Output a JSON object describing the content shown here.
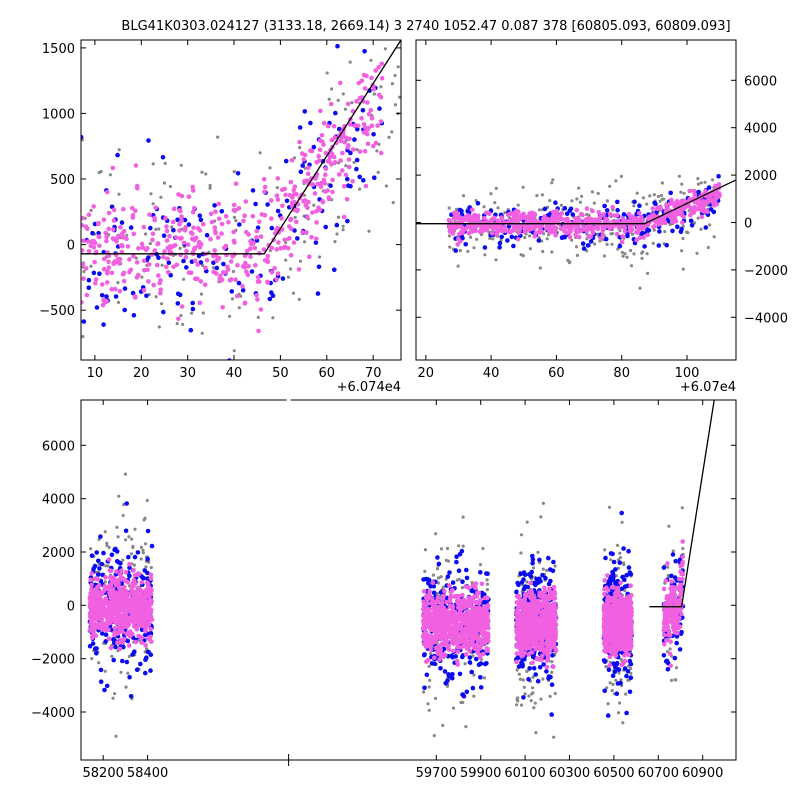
{
  "title": "BLG41K0303.024127 (3133.18, 2669.14)    3 2740 1052.47 0.087 378 [60805.093, 60809.093]",
  "colors": {
    "grey": "#888888",
    "blue": "#0a0af0",
    "magenta": "#f060e0",
    "model": "#000000"
  },
  "chart_data": [
    {
      "type": "scatter",
      "panel": "top-left zoom",
      "offset_text": "+6.074e4",
      "xlim": [
        7,
        76
      ],
      "ylim": [
        -880,
        1560
      ],
      "xticks": [
        10,
        20,
        30,
        40,
        50,
        60,
        70
      ],
      "xtick_labels": [
        "10",
        "20",
        "30",
        "40",
        "50",
        "60",
        "70"
      ],
      "yticks": [
        -500,
        0,
        500,
        1000,
        1500
      ],
      "ytick_labels": [
        "−500",
        "0",
        "500",
        "1000",
        "1500"
      ],
      "model_line": {
        "x": [
          7,
          46.5,
          76
        ],
        "y": [
          -70,
          -70,
          1560
        ]
      },
      "series": [
        {
          "color": "grey",
          "x_range": [
            7,
            76
          ],
          "baseline": [
            [
              7,
              -50
            ],
            [
              46,
              -50
            ],
            [
              76,
              1300
            ]
          ],
          "scatter": 400,
          "count": 160
        },
        {
          "color": "blue",
          "x_range": [
            7,
            72
          ],
          "baseline": [
            [
              7,
              -80
            ],
            [
              46,
              -80
            ],
            [
              72,
              1000
            ]
          ],
          "scatter": 330,
          "count": 170
        },
        {
          "color": "magenta",
          "x_range": [
            7,
            72
          ],
          "baseline": [
            [
              7,
              -60
            ],
            [
              46,
              -60
            ],
            [
              72,
              1150
            ]
          ],
          "scatter": 210,
          "count": 520
        }
      ]
    },
    {
      "type": "scatter",
      "panel": "top-right zoom",
      "offset_text": "+6.07e4",
      "xlim": [
        17,
        115
      ],
      "ylim": [
        -5800,
        7700
      ],
      "xticks": [
        20,
        40,
        60,
        80,
        100
      ],
      "xtick_labels": [
        "20",
        "40",
        "60",
        "80",
        "100"
      ],
      "yticks": [
        -4000,
        -2000,
        0,
        2000,
        4000,
        6000
      ],
      "ytick_labels": [
        "−4000",
        "−2000",
        "0",
        "2000",
        "4000",
        "6000"
      ],
      "model_line": {
        "x": [
          17,
          87,
          115
        ],
        "y": [
          -50,
          -50,
          1800
        ]
      },
      "series": [
        {
          "color": "grey",
          "x_range": [
            27,
            110
          ],
          "baseline": [
            [
              27,
              -200
            ],
            [
              86,
              -200
            ],
            [
              110,
              900
            ]
          ],
          "scatter": 900,
          "count": 260
        },
        {
          "color": "blue",
          "x_range": [
            27,
            110
          ],
          "baseline": [
            [
              27,
              -150
            ],
            [
              86,
              -150
            ],
            [
              110,
              1000
            ]
          ],
          "scatter": 450,
          "count": 230
        },
        {
          "color": "magenta",
          "x_range": [
            27,
            110
          ],
          "baseline": [
            [
              27,
              -60
            ],
            [
              86,
              -60
            ],
            [
              110,
              1100
            ]
          ],
          "scatter": 260,
          "count": 620
        }
      ]
    },
    {
      "type": "scatter",
      "panel": "bottom full light curve",
      "xlim": [
        58100,
        61050
      ],
      "ylim": [
        -5800,
        7700
      ],
      "xticks": [
        58200,
        58400,
        59700,
        59900,
        60100,
        60300,
        60500,
        60700,
        60900
      ],
      "xtick_labels": [
        "58200",
        "58400",
        "59700",
        "59900",
        "60100",
        "60300",
        "60500",
        "60700",
        "60900"
      ],
      "yticks": [
        -4000,
        -2000,
        0,
        2000,
        4000,
        6000
      ],
      "ytick_labels": [
        "−4000",
        "−2000",
        "0",
        "2000",
        "4000",
        "6000"
      ],
      "axis_break_x": [
        58470,
        59600
      ],
      "model_line": {
        "x": [
          60660,
          60805,
          60952
        ],
        "y": [
          -50,
          -50,
          7700
        ]
      },
      "seasons": [
        {
          "x_range": [
            58140,
            58420
          ],
          "level": -100
        },
        {
          "x_range": [
            59640,
            59935
          ],
          "level": -700
        },
        {
          "x_range": [
            60060,
            60240
          ],
          "level": -700
        },
        {
          "x_range": [
            60455,
            60580
          ],
          "level": -700
        },
        {
          "x_range": [
            60725,
            60812
          ],
          "level": -400
        }
      ],
      "series": [
        {
          "color": "grey",
          "scatter": 1600,
          "count_per_season": 150
        },
        {
          "color": "blue",
          "scatter": 1100,
          "count_per_season": 260
        },
        {
          "color": "magenta",
          "scatter": 550,
          "count_per_season": 700
        }
      ]
    }
  ]
}
